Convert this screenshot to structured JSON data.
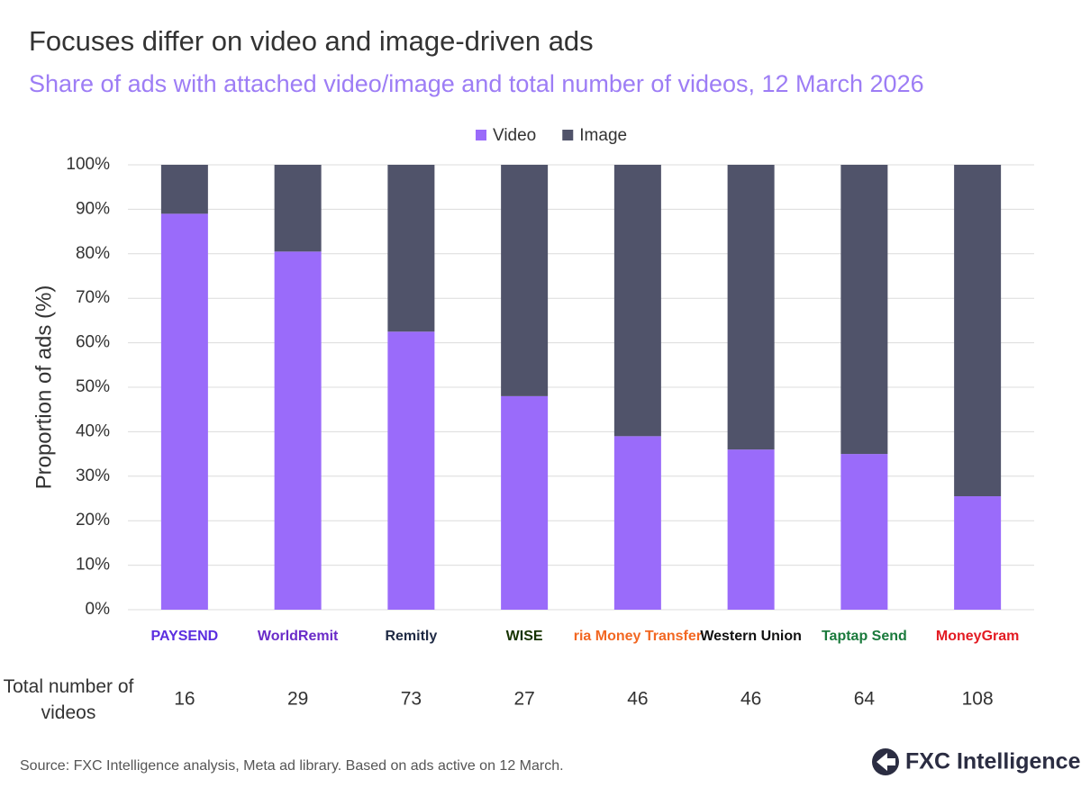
{
  "chart_data": {
    "type": "stacked-bar",
    "title": "Focuses differ on video and image-driven ads",
    "subtitle": "Share of ads with attached video/image and total number of videos, 12 March 2026",
    "y_label": "Proportion of ads (%)",
    "categories": [
      "PAYSEND",
      "WorldRemit",
      "Remitly",
      "WISE",
      "ria Money Transfer",
      "Western Union",
      "Taptap Send",
      "MoneyGram"
    ],
    "series": [
      {
        "name": "Video",
        "color": "#9a6bfa",
        "values": [
          89,
          80.5,
          62.5,
          48,
          39,
          36,
          35,
          25.5
        ]
      },
      {
        "name": "Image",
        "color": "#50536a",
        "values": [
          11,
          19.5,
          37.5,
          52,
          61,
          64,
          65,
          74.5
        ]
      }
    ],
    "ylim": [
      0,
      100
    ],
    "yticks": [
      {
        "value": 0,
        "label": "0%"
      },
      {
        "value": 10,
        "label": "10%"
      },
      {
        "value": 20,
        "label": "20%"
      },
      {
        "value": 30,
        "label": "30%"
      },
      {
        "value": 40,
        "label": "40%"
      },
      {
        "value": 50,
        "label": "50%"
      },
      {
        "value": 60,
        "label": "60%"
      },
      {
        "value": 70,
        "label": "70%"
      },
      {
        "value": 80,
        "label": "80%"
      },
      {
        "value": 90,
        "label": "90%"
      },
      {
        "value": 100,
        "label": "100%"
      }
    ],
    "grid": true,
    "legend": "top",
    "total_videos": {
      "label": "Total number of videos",
      "values": [
        16,
        29,
        73,
        27,
        46,
        46,
        64,
        108
      ]
    },
    "source": "Source: FXC Intelligence analysis, Meta ad library. Based on ads active on 12 March.",
    "brand": "FXC Intelligence"
  }
}
